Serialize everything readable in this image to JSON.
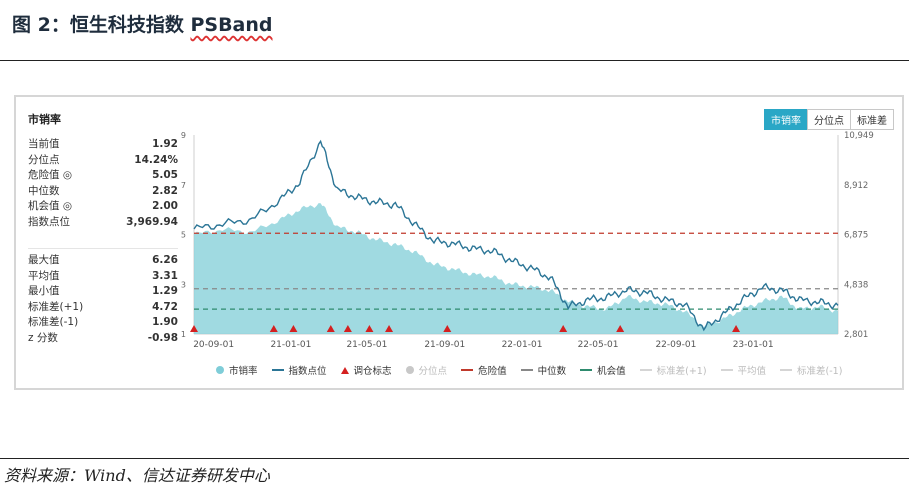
{
  "page": {
    "figure_title": "图 2：恒生科技指数 ",
    "figure_title_em": "PSBand",
    "source": "资料来源：Wind、信达证券研发中心"
  },
  "panel": {
    "title": "市销率",
    "tabs": [
      {
        "label": "市销率",
        "active": true
      },
      {
        "label": "分位点",
        "active": false
      },
      {
        "label": "标准差",
        "active": false
      }
    ],
    "stats_top": [
      {
        "label": "当前值",
        "value": "1.92"
      },
      {
        "label": "分位点",
        "value": "14.24%"
      },
      {
        "label": "危险值 ◎",
        "value": "5.05"
      },
      {
        "label": "中位数",
        "value": "2.82"
      },
      {
        "label": "机会值 ◎",
        "value": "2.00"
      },
      {
        "label": "指数点位",
        "value": "3,969.94"
      }
    ],
    "stats_bottom": [
      {
        "label": "最大值",
        "value": "6.26"
      },
      {
        "label": "平均值",
        "value": "3.31"
      },
      {
        "label": "最小值",
        "value": "1.29"
      },
      {
        "label": "标准差(+1)",
        "value": "4.72"
      },
      {
        "label": "标准差(-1)",
        "value": "1.90"
      },
      {
        "label": "z 分数",
        "value": "-0.98"
      }
    ],
    "legend": [
      {
        "label": "市销率",
        "kind": "dot",
        "color": "#7fcdd8",
        "muted": false
      },
      {
        "label": "指数点位",
        "kind": "line",
        "color": "#2b7596",
        "muted": false
      },
      {
        "label": "调仓标志",
        "kind": "tri",
        "color": "#d42020",
        "muted": false
      },
      {
        "label": "分位点",
        "kind": "dot",
        "color": "#c8c8c8",
        "muted": true
      },
      {
        "label": "危险值",
        "kind": "dash",
        "color": "#c0392b",
        "muted": false
      },
      {
        "label": "中位数",
        "kind": "dash",
        "color": "#888888",
        "muted": false
      },
      {
        "label": "机会值",
        "kind": "dash",
        "color": "#2e8b6e",
        "muted": false
      },
      {
        "label": "标准差(+1)",
        "kind": "dash",
        "color": "#cccccc",
        "muted": true
      },
      {
        "label": "平均值",
        "kind": "dash",
        "color": "#cccccc",
        "muted": true
      },
      {
        "label": "标准差(-1)",
        "kind": "dash",
        "color": "#cccccc",
        "muted": true
      }
    ]
  },
  "chart_data": {
    "type": "area",
    "title": "市销率",
    "x_start": "2020-08-01",
    "x_end": "2023-05-15",
    "x_tick_labels": [
      "20-09-01",
      "21-01-01",
      "21-05-01",
      "21-09-01",
      "22-01-01",
      "22-05-01",
      "22-09-01",
      "23-01-01"
    ],
    "x_tick_dates": [
      "2020-09-01",
      "2021-01-01",
      "2021-05-01",
      "2021-09-01",
      "2022-01-01",
      "2022-05-01",
      "2022-09-01",
      "2023-01-01"
    ],
    "left_axis": {
      "label": "市销率",
      "ylim": [
        1,
        9
      ],
      "ticks": [
        1,
        3,
        5,
        7,
        9
      ]
    },
    "right_axis": {
      "label": "指数点位",
      "ylim": [
        2801,
        10949
      ],
      "ticks": [
        "2,801",
        "4,838",
        "6,875",
        "8,912",
        "10,949"
      ],
      "tick_values": [
        2801,
        4838,
        6875,
        8912,
        10949
      ]
    },
    "reference_lines": [
      {
        "name": "危险值",
        "value": 5.05,
        "color": "#c0392b"
      },
      {
        "name": "中位数",
        "value": 2.82,
        "color": "#888888"
      },
      {
        "name": "机会值",
        "value": 2.0,
        "color": "#2e8b6e"
      }
    ],
    "ps_series": {
      "name": "市销率",
      "x": [
        "2020-08-01",
        "2020-09-15",
        "2020-11-01",
        "2020-12-15",
        "2021-01-15",
        "2021-02-17",
        "2021-03-15",
        "2021-04-15",
        "2021-05-15",
        "2021-06-15",
        "2021-07-15",
        "2021-08-15",
        "2021-09-15",
        "2021-10-15",
        "2021-11-15",
        "2021-12-15",
        "2022-01-15",
        "2022-02-15",
        "2022-03-15",
        "2022-04-15",
        "2022-05-15",
        "2022-06-15",
        "2022-07-15",
        "2022-08-15",
        "2022-09-15",
        "2022-10-15",
        "2022-11-15",
        "2022-12-15",
        "2023-01-15",
        "2023-02-15",
        "2023-03-15",
        "2023-04-15",
        "2023-05-15"
      ],
      "values": [
        5.0,
        5.2,
        5.1,
        5.6,
        6.0,
        6.26,
        5.3,
        5.1,
        4.8,
        4.6,
        4.3,
        3.8,
        3.6,
        3.4,
        3.3,
        3.0,
        2.9,
        2.75,
        2.3,
        2.1,
        2.0,
        2.5,
        2.3,
        2.2,
        1.9,
        1.3,
        1.6,
        2.0,
        2.3,
        2.5,
        2.0,
        2.1,
        1.92
      ]
    },
    "index_series": {
      "name": "指数点位",
      "x": [
        "2020-08-01",
        "2020-09-15",
        "2020-11-01",
        "2020-12-15",
        "2021-01-15",
        "2021-02-17",
        "2021-03-15",
        "2021-04-15",
        "2021-05-15",
        "2021-06-15",
        "2021-07-15",
        "2021-08-15",
        "2021-09-15",
        "2021-10-15",
        "2021-11-15",
        "2021-12-15",
        "2022-01-15",
        "2022-02-15",
        "2022-03-15",
        "2022-04-15",
        "2022-05-15",
        "2022-06-15",
        "2022-07-15",
        "2022-08-15",
        "2022-09-15",
        "2022-10-15",
        "2022-11-15",
        "2022-12-15",
        "2023-01-15",
        "2023-02-15",
        "2023-03-15",
        "2023-04-15",
        "2023-05-15"
      ],
      "values": [
        7100,
        7300,
        7500,
        8300,
        9000,
        10700,
        8700,
        8400,
        8200,
        8100,
        7300,
        6600,
        6500,
        6300,
        6200,
        5800,
        5500,
        5100,
        3900,
        4200,
        4300,
        4600,
        4500,
        4200,
        4000,
        3000,
        3600,
        4200,
        4700,
        4600,
        4200,
        4100,
        3970
      ]
    },
    "rebalance_dates": [
      "2020-08-01",
      "2020-12-05",
      "2021-01-05",
      "2021-03-05",
      "2021-04-01",
      "2021-05-05",
      "2021-06-05",
      "2021-09-05",
      "2022-03-07",
      "2022-06-05",
      "2022-12-05"
    ]
  }
}
